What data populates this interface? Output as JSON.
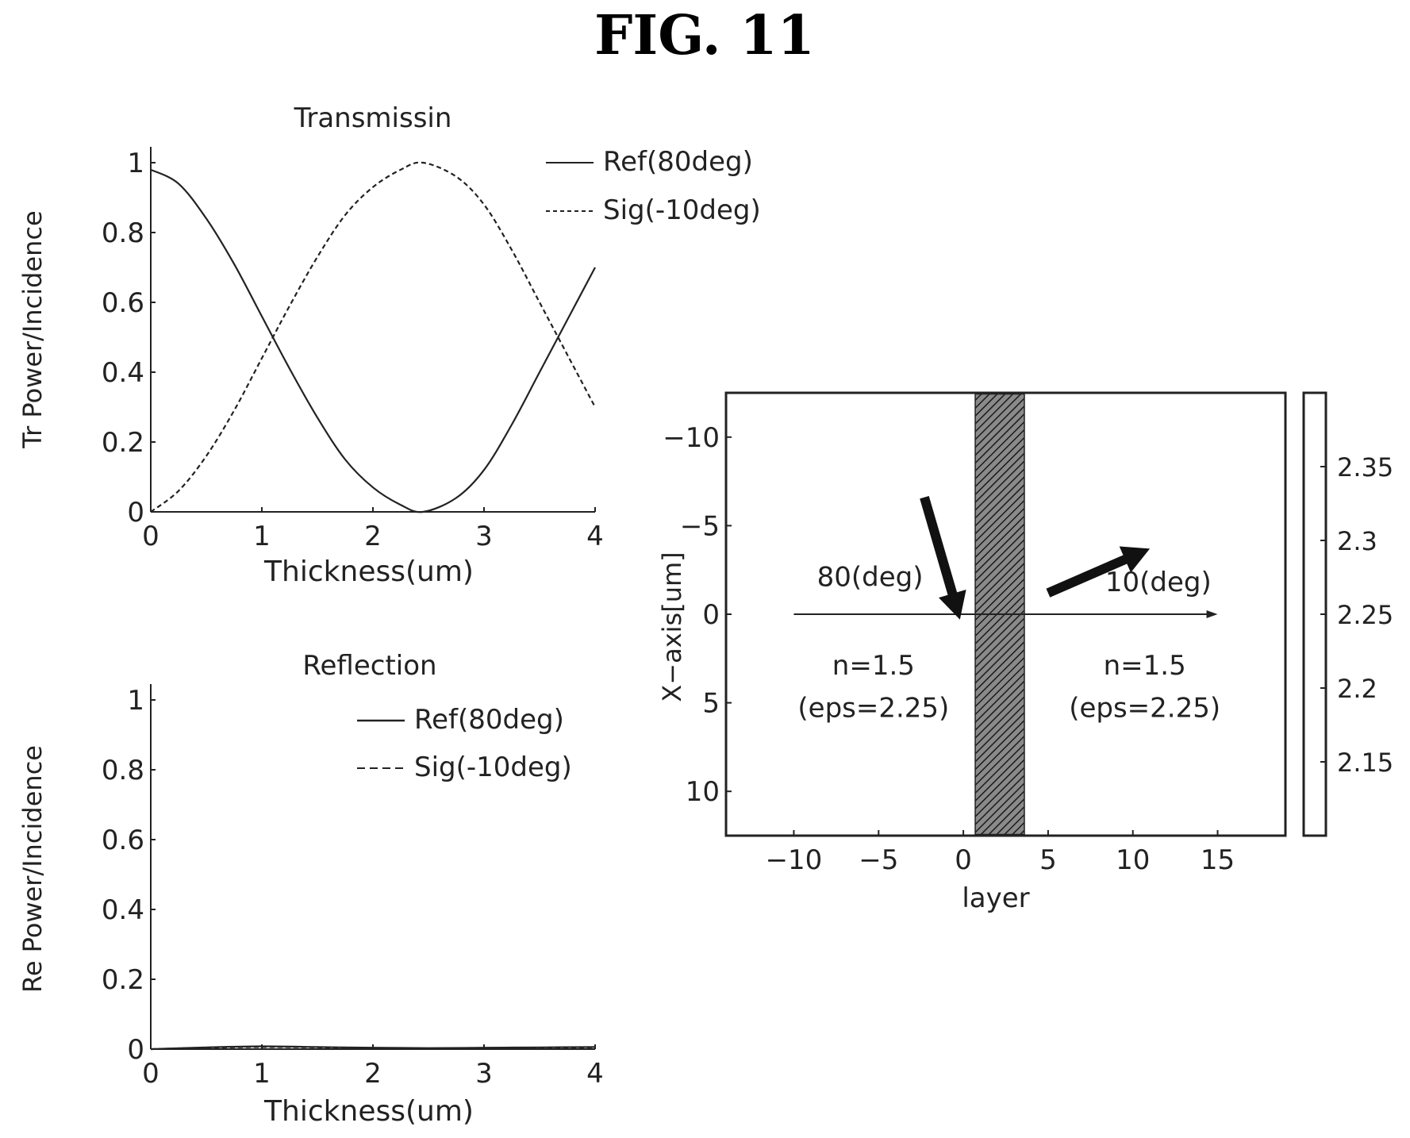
{
  "figure_title": "FIG. 11",
  "chart_data": [
    {
      "type": "line",
      "title": "Transmissin",
      "xlabel": "Thickness(um)",
      "ylabel": "Tr Power/Incidence",
      "xlim": [
        0,
        4
      ],
      "ylim": [
        0,
        1
      ],
      "xticks": [
        "0",
        "1",
        "2",
        "3",
        "4"
      ],
      "yticks": [
        "0",
        "0.2",
        "0.4",
        "0.6",
        "0.8",
        "1"
      ],
      "legend_position": "top-right-outside",
      "x": [
        0,
        0.25,
        0.5,
        0.75,
        1.0,
        1.25,
        1.5,
        1.75,
        2.0,
        2.25,
        2.45,
        2.75,
        3.0,
        3.25,
        3.5,
        3.75,
        4.0
      ],
      "series": [
        {
          "name": "Ref(80deg)",
          "style": "solid",
          "values": [
            0.98,
            0.94,
            0.84,
            0.71,
            0.56,
            0.41,
            0.27,
            0.15,
            0.07,
            0.02,
            0.0,
            0.04,
            0.12,
            0.25,
            0.4,
            0.55,
            0.7
          ]
        },
        {
          "name": "Sig(-10deg)",
          "style": "dashed",
          "values": [
            0.0,
            0.06,
            0.16,
            0.29,
            0.44,
            0.59,
            0.73,
            0.85,
            0.93,
            0.98,
            1.0,
            0.96,
            0.88,
            0.75,
            0.6,
            0.45,
            0.3
          ]
        }
      ]
    },
    {
      "type": "line",
      "title": "Reflection",
      "xlabel": "Thickness(um)",
      "ylabel": "Re Power/Incidence",
      "xlim": [
        0,
        4
      ],
      "ylim": [
        0,
        1
      ],
      "xticks": [
        "0",
        "1",
        "2",
        "3",
        "4"
      ],
      "yticks": [
        "0",
        "0.2",
        "0.4",
        "0.6",
        "0.8",
        "1"
      ],
      "legend_position": "top-right",
      "x": [
        0,
        0.5,
        1.0,
        1.5,
        2.0,
        2.5,
        3.0,
        3.5,
        4.0
      ],
      "series": [
        {
          "name": "Ref(80deg)",
          "style": "solid",
          "values": [
            0.0,
            0.005,
            0.008,
            0.006,
            0.004,
            0.003,
            0.004,
            0.005,
            0.006
          ]
        },
        {
          "name": "Sig(-10deg)",
          "style": "dashed",
          "values": [
            0.0,
            0.004,
            0.006,
            0.005,
            0.003,
            0.002,
            0.003,
            0.004,
            0.005
          ]
        }
      ]
    },
    {
      "type": "heatmap",
      "xlabel": "layer",
      "ylabel": "X−axis[um]",
      "xlim": [
        -14,
        19
      ],
      "ylim": [
        -12.5,
        12.5
      ],
      "y_inverted": true,
      "xticks": [
        {
          "v": -10,
          "t": "−10"
        },
        {
          "v": -5,
          "t": "−5"
        },
        {
          "v": 0,
          "t": "0"
        },
        {
          "v": 5,
          "t": "5"
        },
        {
          "v": 10,
          "t": "10"
        },
        {
          "v": 15,
          "t": "15"
        }
      ],
      "yticks": [
        {
          "v": -10,
          "t": "−10"
        },
        {
          "v": -5,
          "t": "−5"
        },
        {
          "v": 0,
          "t": "0"
        },
        {
          "v": 5,
          "t": "5"
        },
        {
          "v": 10,
          "t": "10"
        }
      ],
      "layer_band": [
        0.7,
        3.6
      ],
      "axis_arrow": {
        "x_start": -10,
        "x_end": 15,
        "y": 0
      },
      "incident_arrow": {
        "from": [
          -2.3,
          -6.6
        ],
        "to": [
          -0.2,
          0.3
        ],
        "label": "80(deg)",
        "label_at": [
          -5.5,
          -1.6
        ]
      },
      "output_arrow": {
        "from": [
          5,
          -1.2
        ],
        "to": [
          11,
          -3.7
        ],
        "label": "10(deg)",
        "label_at": [
          11.5,
          -1.3
        ]
      },
      "regions": [
        {
          "line1": "n=1.5",
          "line2": "(eps=2.25)",
          "x": -5.3
        },
        {
          "line1": "n=1.5",
          "line2": "(eps=2.25)",
          "x": 10.7
        }
      ],
      "region_label_y": [
        3.4,
        5.8
      ],
      "colorbar": {
        "min": 2.1,
        "max": 2.4,
        "ticks": [
          "2.35",
          "2.3",
          "2.25",
          "2.2",
          "2.15"
        ],
        "tick_values": [
          2.35,
          2.3,
          2.25,
          2.2,
          2.15
        ]
      }
    }
  ]
}
